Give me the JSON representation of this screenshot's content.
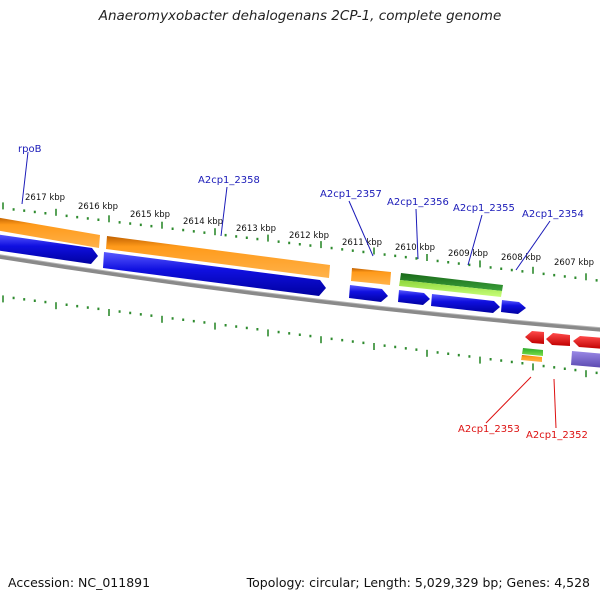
{
  "title": "Anaeromyxobacter dehalogenans 2CP-1, complete genome",
  "footer": {
    "accession": "Accession: NC_011891",
    "stats": "Topology: circular; Length: 5,029,329 bp; Genes: 4,528"
  },
  "colors": {
    "background": "#ffffff",
    "backbone": "#8a8a8a",
    "tick": "#2e8b2e",
    "orange_feature": "#ff9a1a",
    "blue_feature": "#1010e0",
    "green_feature": "#2a8a2a",
    "lightgreen_feature": "#aaee55",
    "red_feature": "#ee1111",
    "purple_feature": "#7766cc",
    "upper_label": "#1a1ab8",
    "lower_label": "#dd1111"
  },
  "ruler_labels": [
    "2617 kbp",
    "2616 kbp",
    "2615 kbp",
    "2614 kbp",
    "2613 kbp",
    "2612 kbp",
    "2611 kbp",
    "2610 kbp",
    "2609 kbp",
    "2608 kbp",
    "2607 kbp"
  ],
  "upper_gene_labels": [
    "rpoB",
    "A2cp1_2358",
    "A2cp1_2357",
    "A2cp1_2356",
    "A2cp1_2355",
    "A2cp1_2354"
  ],
  "lower_gene_labels": [
    "A2cp1_2353",
    "A2cp1_2352"
  ]
}
